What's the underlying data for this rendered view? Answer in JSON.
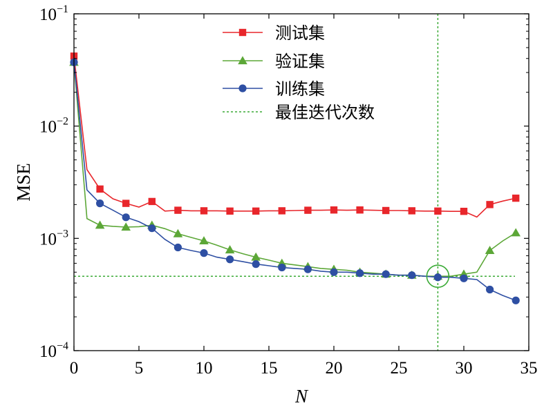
{
  "chart_data": {
    "type": "line",
    "xlabel": "N",
    "ylabel": "MSE",
    "xlim": [
      0,
      35
    ],
    "ylim": [
      0.0001,
      0.1
    ],
    "yscale": "log",
    "grid": false,
    "legend_position": "top-center",
    "x_ticks": [
      {
        "v": 0,
        "label": "0"
      },
      {
        "v": 5,
        "label": "5"
      },
      {
        "v": 10,
        "label": "10"
      },
      {
        "v": 15,
        "label": "15"
      },
      {
        "v": 20,
        "label": "20"
      },
      {
        "v": 25,
        "label": "25"
      },
      {
        "v": 30,
        "label": "30"
      },
      {
        "v": 35,
        "label": "35"
      }
    ],
    "y_ticks": [
      {
        "v": 0.1,
        "base": "10",
        "exp": "−1"
      },
      {
        "v": 0.01,
        "base": "10",
        "exp": "−2"
      },
      {
        "v": 0.001,
        "base": "10",
        "exp": "−3"
      },
      {
        "v": 0.0001,
        "base": "10",
        "exp": "−4"
      }
    ],
    "x": [
      0,
      1,
      2,
      3,
      4,
      5,
      6,
      7,
      8,
      9,
      10,
      11,
      12,
      13,
      14,
      15,
      16,
      17,
      18,
      19,
      20,
      21,
      22,
      23,
      24,
      25,
      26,
      27,
      28,
      29,
      30,
      31,
      32,
      33,
      34
    ],
    "series": [
      {
        "name": "测试集",
        "color": "#e8262b",
        "marker": "square",
        "values": [
          0.042,
          0.0041,
          0.00275,
          0.00225,
          0.00205,
          0.0019,
          0.00213,
          0.00175,
          0.00178,
          0.00176,
          0.00176,
          0.00176,
          0.00175,
          0.00175,
          0.00175,
          0.00176,
          0.00176,
          0.00177,
          0.00178,
          0.00178,
          0.00179,
          0.00178,
          0.00179,
          0.00178,
          0.00177,
          0.00177,
          0.00176,
          0.00175,
          0.00175,
          0.00174,
          0.00174,
          0.00155,
          0.002,
          0.00215,
          0.00228
        ]
      },
      {
        "name": "验证集",
        "color": "#5ca737",
        "marker": "triangle",
        "values": [
          0.037,
          0.0015,
          0.00131,
          0.00128,
          0.00126,
          0.00127,
          0.00131,
          0.00122,
          0.0011,
          0.00102,
          0.00095,
          0.00087,
          0.00079,
          0.00073,
          0.00068,
          0.00064,
          0.0006,
          0.00058,
          0.00056,
          0.00054,
          0.00053,
          0.00052,
          0.0005,
          0.00049,
          0.00048,
          0.00047,
          0.00047,
          0.00046,
          0.00046,
          0.00046,
          0.00048,
          0.0005,
          0.00078,
          0.00095,
          0.00112
        ]
      },
      {
        "name": "训练集",
        "color": "#2e4fa3",
        "marker": "circle",
        "values": [
          0.037,
          0.0027,
          0.00205,
          0.00178,
          0.00154,
          0.00141,
          0.00123,
          0.00098,
          0.00083,
          0.00078,
          0.00074,
          0.00068,
          0.00065,
          0.00062,
          0.00059,
          0.00057,
          0.00055,
          0.00054,
          0.00053,
          0.00051,
          0.0005,
          0.0005,
          0.00049,
          0.00048,
          0.00048,
          0.00047,
          0.00047,
          0.00046,
          0.00045,
          0.00045,
          0.00044,
          0.00043,
          0.00035,
          0.00031,
          0.00028
        ]
      }
    ],
    "reference_lines": {
      "name": "最佳迭代次数",
      "color": "#3aaa35",
      "x": 28,
      "y": 0.00046
    },
    "highlight": {
      "x": 28,
      "y": 0.00046,
      "color": "#3aaa35"
    }
  }
}
